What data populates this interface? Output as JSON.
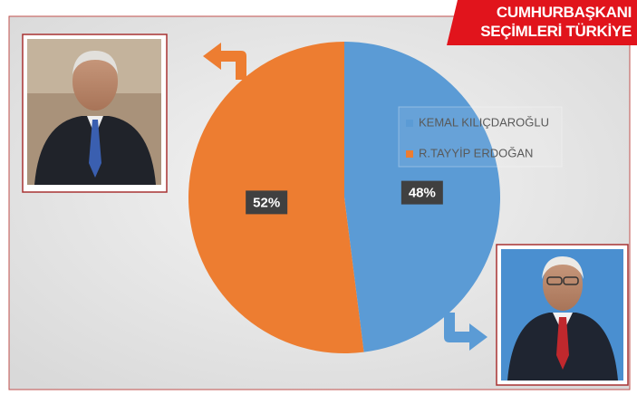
{
  "chart_data": {
    "type": "pie",
    "title": "CUMHURBAŞKANI SEÇİMLERİ TÜRKİYE",
    "categories": [
      "KEMAL KILIÇDAROĞLU",
      "R.TAYYİP ERDOĞAN"
    ],
    "values": [
      48,
      52
    ],
    "value_labels": [
      "48%",
      "52%"
    ],
    "colors": [
      "#5b9bd5",
      "#ed7d31"
    ]
  }
}
